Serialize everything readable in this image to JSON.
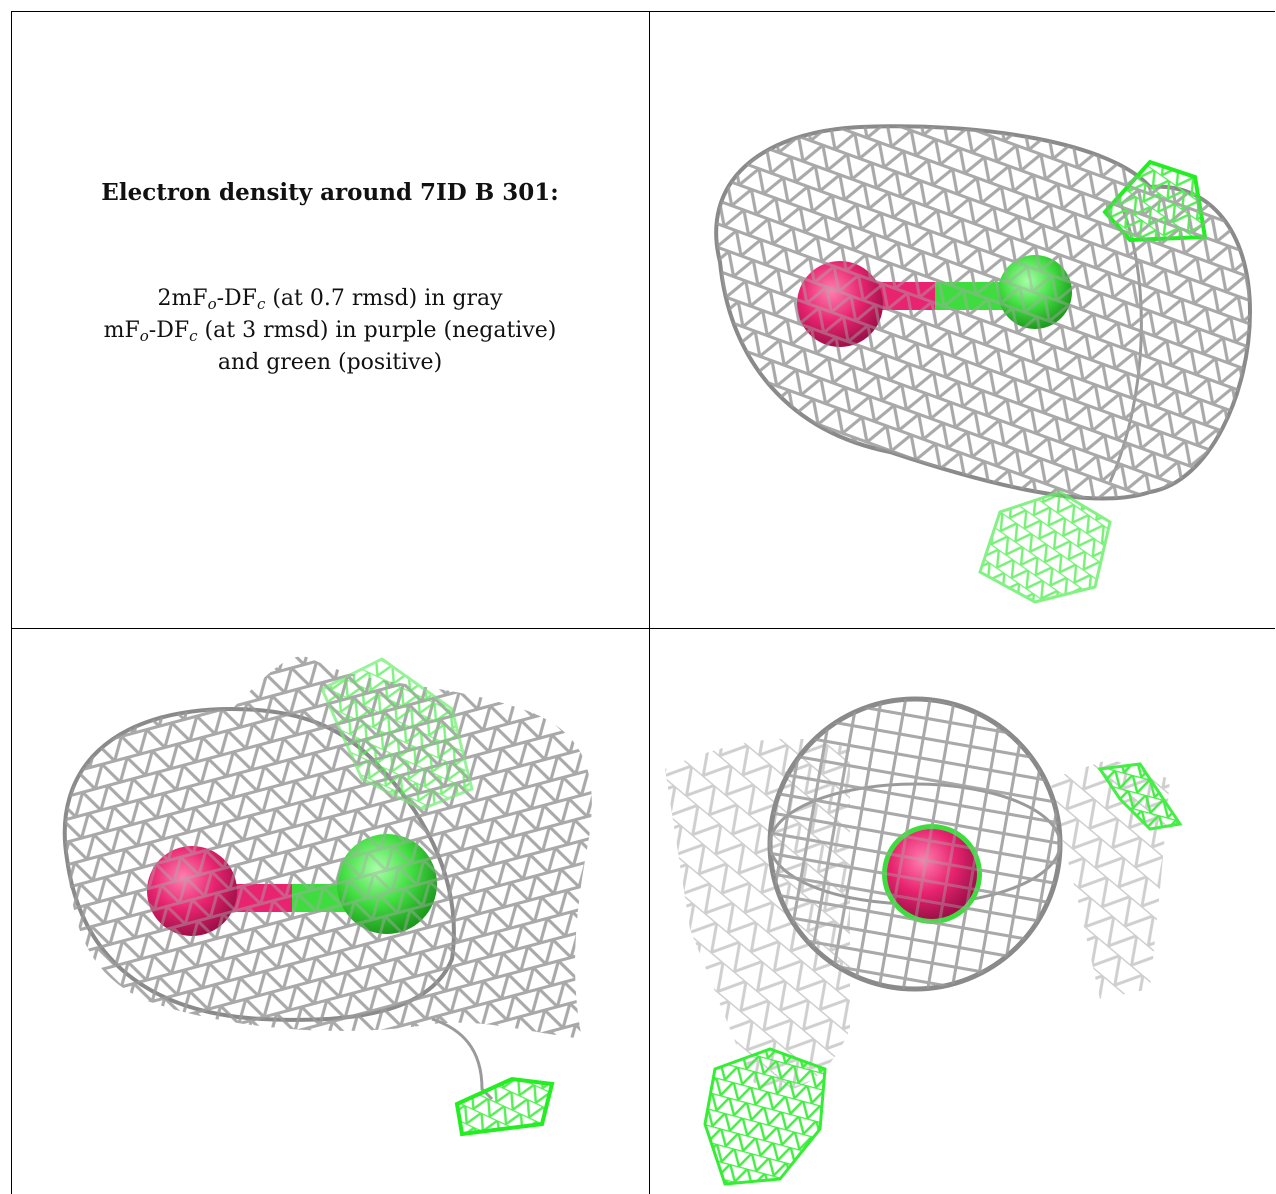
{
  "caption": {
    "title": "Electron density around 7ID B 301:",
    "line1_pre": "2mF",
    "line1_sub1": "o",
    "line1_mid": "-DF",
    "line1_sub2": "c",
    "line1_post": " (at 0.7 rmsd) in gray",
    "line2_pre": "mF",
    "line2_sub1": "o",
    "line2_mid": "-DF",
    "line2_sub2": "c",
    "line2_post": " (at 3 rmsd) in purple (negative)",
    "line3": "and green (positive)"
  },
  "colors": {
    "mesh_gray": "#a9a9a9",
    "mesh_green": "#33ee33",
    "atom_magenta": "#e8236f",
    "atom_green": "#3fdc3f",
    "border": "#000000"
  },
  "panels": [
    "view-1",
    "view-2",
    "view-3"
  ]
}
